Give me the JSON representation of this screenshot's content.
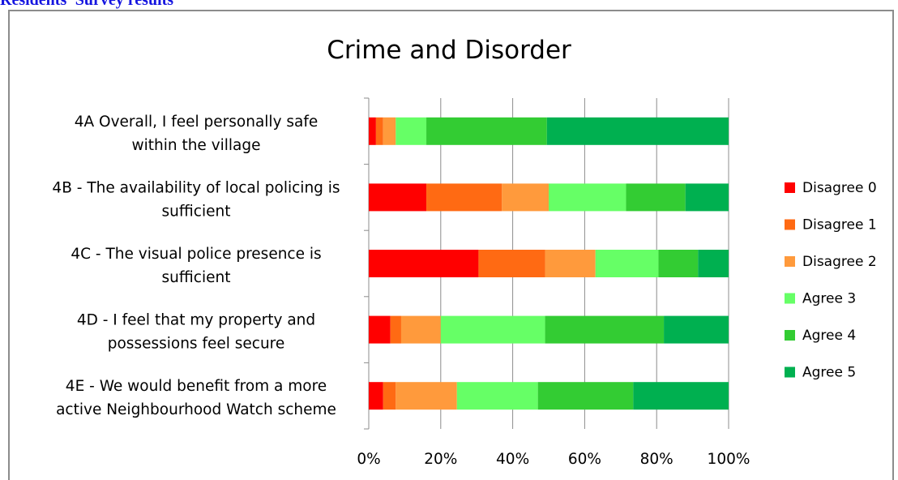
{
  "page": {
    "heading": "Residents' Survey results"
  },
  "chart_data": {
    "type": "bar",
    "orientation": "horizontal",
    "stacked": "100%",
    "title": "Crime and Disorder",
    "categories": [
      [
        "4A   Overall, I feel  personally safe",
        "within the village"
      ],
      [
        "4B - The availability of local policing is",
        "sufficient"
      ],
      [
        "4C - The visual police presence is",
        "sufficient"
      ],
      [
        "4D - I feel that my property and",
        "possessions feel secure"
      ],
      [
        "4E - We would benefit from a more",
        "active Neighbourhood Watch scheme"
      ]
    ],
    "series": [
      {
        "name": "Disagree 0",
        "color": "#ff0000",
        "values": [
          2,
          16,
          30.5,
          6,
          4
        ]
      },
      {
        "name": "Disagree 1",
        "color": "#ff6a13",
        "values": [
          2,
          21,
          18.5,
          3,
          3.5
        ]
      },
      {
        "name": "Disagree 2",
        "color": "#ff9a3c",
        "values": [
          3.5,
          13,
          14,
          11,
          17
        ]
      },
      {
        "name": "Agree 3",
        "color": "#66ff66",
        "values": [
          8.5,
          21.5,
          17.5,
          29,
          22.5
        ]
      },
      {
        "name": "Agree 4",
        "color": "#33cc33",
        "values": [
          33.5,
          16.5,
          11,
          33,
          26.5
        ]
      },
      {
        "name": "Agree 5",
        "color": "#00b050",
        "values": [
          50.5,
          12,
          8.5,
          18,
          26.5
        ]
      }
    ],
    "x_ticks": [
      "0%",
      "20%",
      "40%",
      "60%",
      "80%",
      "100%"
    ],
    "xlim": [
      0,
      100
    ],
    "grid": true,
    "legend": "right"
  }
}
